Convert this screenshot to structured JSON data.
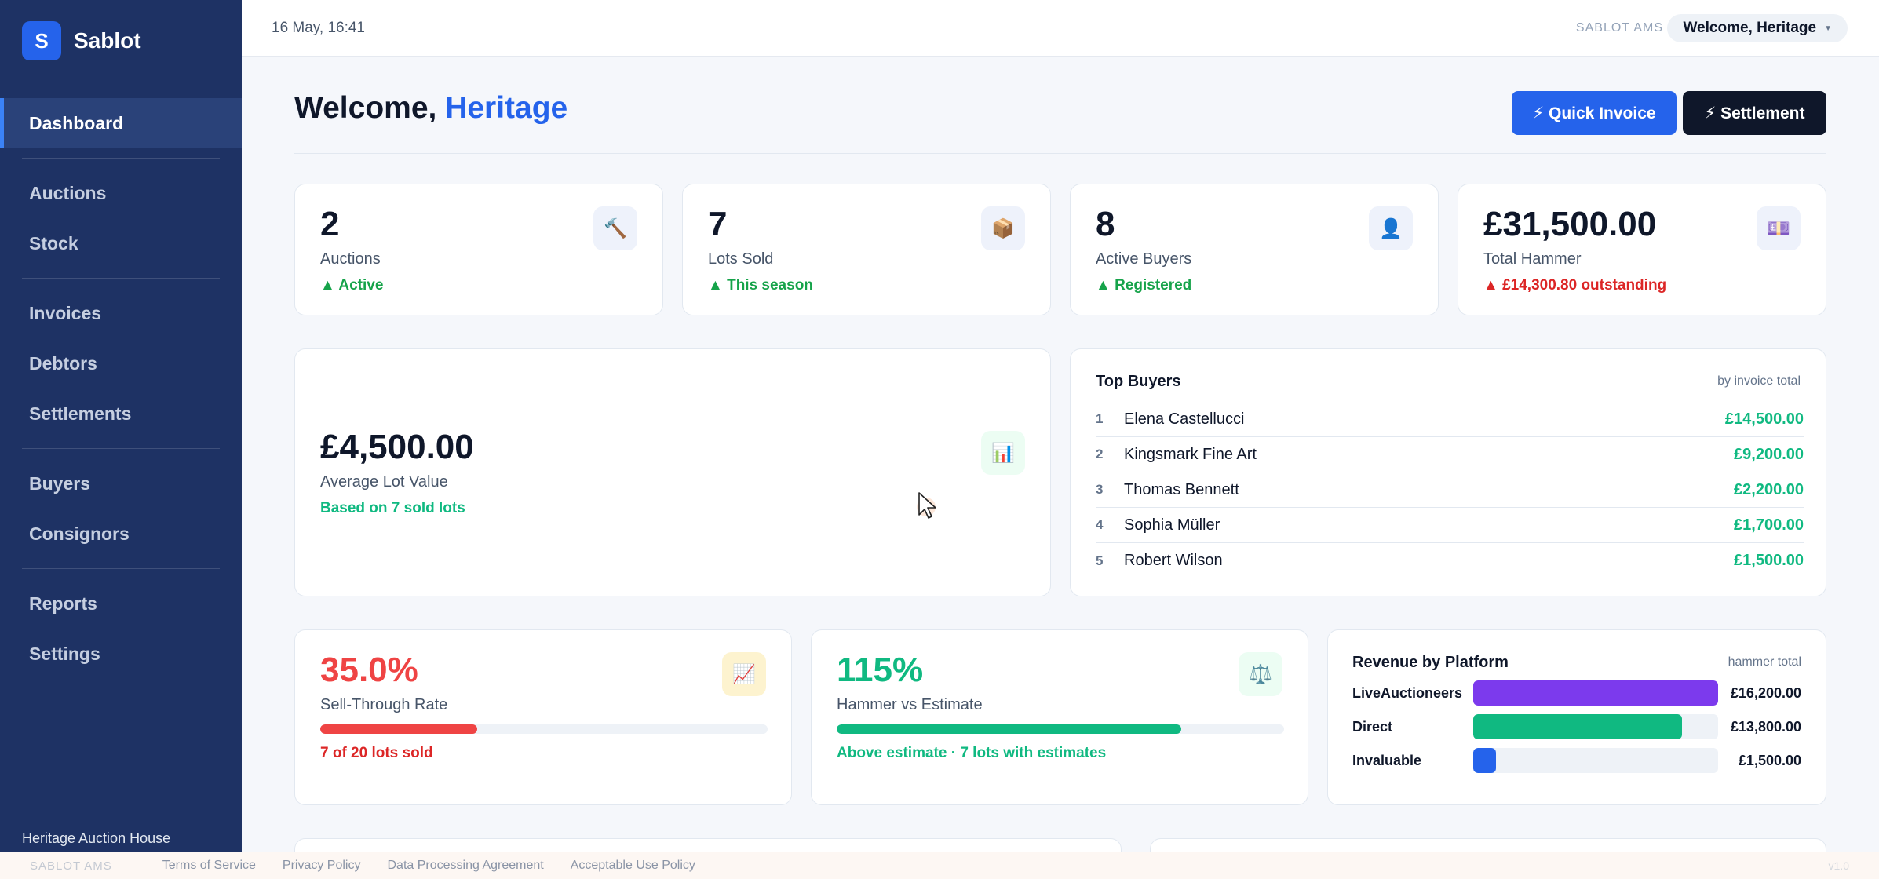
{
  "brand": {
    "logo_letter": "S",
    "name": "Sablot"
  },
  "sidebar": {
    "items": [
      {
        "label": "Dashboard",
        "active": true
      },
      {
        "label": "Auctions"
      },
      {
        "label": "Stock"
      },
      {
        "label": "Invoices"
      },
      {
        "label": "Debtors"
      },
      {
        "label": "Settlements"
      },
      {
        "label": "Buyers"
      },
      {
        "label": "Consignors"
      },
      {
        "label": "Reports"
      },
      {
        "label": "Settings"
      }
    ],
    "footer": "Heritage Auction House"
  },
  "topbar": {
    "datetime": "16 May, 16:41",
    "app_name": "SABLOT AMS",
    "user_menu": "Welcome, Heritage"
  },
  "page": {
    "title_prefix": "Welcome, ",
    "title_name": "Heritage",
    "quick_invoice": "⚡ Quick Invoice",
    "settlement": "⚡ Settlement"
  },
  "kpis": [
    {
      "value": "2",
      "label": "Auctions",
      "trend": "▲ Active",
      "icon": "gavel-icon",
      "glyph": "🔨",
      "trend_color": "#16a34a"
    },
    {
      "value": "7",
      "label": "Lots Sold",
      "trend": "▲ This season",
      "icon": "package-icon",
      "glyph": "📦",
      "trend_color": "#16a34a"
    },
    {
      "value": "8",
      "label": "Active Buyers",
      "trend": "▲ Registered",
      "icon": "user-icon",
      "glyph": "👤",
      "trend_color": "#16a34a"
    },
    {
      "value": "£31,500.00",
      "label": "Total Hammer",
      "trend": "▲ £14,300.80 outstanding",
      "icon": "cash-icon",
      "glyph": "💷",
      "trend_color": "#dc2626"
    }
  ],
  "avg_lot": {
    "value": "£4,500.00",
    "label": "Average Lot Value",
    "note": "Based on 7 sold lots",
    "icon": "bar-chart-icon",
    "glyph": "📊"
  },
  "top_buyers": {
    "title": "Top Buyers",
    "subtitle": "by invoice total",
    "rows": [
      {
        "rank": "1",
        "name": "Elena Castellucci",
        "total": "£14,500.00"
      },
      {
        "rank": "2",
        "name": "Kingsmark Fine Art",
        "total": "£9,200.00"
      },
      {
        "rank": "3",
        "name": "Thomas Bennett",
        "total": "£2,200.00"
      },
      {
        "rank": "4",
        "name": "Sophia Müller",
        "total": "£1,700.00"
      },
      {
        "rank": "5",
        "name": "Robert Wilson",
        "total": "£1,500.00"
      }
    ]
  },
  "sell_through": {
    "value": "35.0%",
    "label": "Sell-Through Rate",
    "note": "7 of 20 lots sold",
    "progress": 0.35,
    "color": "#ef4444",
    "icon": "trend-chart-icon",
    "glyph": "📈"
  },
  "hammer_estimate": {
    "value": "115%",
    "label": "Hammer vs Estimate",
    "note": "Above estimate · 7 lots with estimates",
    "progress": 0.77,
    "color": "#10b981",
    "icon": "scales-icon",
    "glyph": "⚖️"
  },
  "revenue_platform": {
    "title": "Revenue by Platform",
    "subtitle": "hammer total",
    "rows": [
      {
        "name": "LiveAuctioneers",
        "value": "£16,200.00",
        "amount": 16200,
        "color": "#7c3aed"
      },
      {
        "name": "Direct",
        "value": "£13,800.00",
        "amount": 13800,
        "color": "#10b981"
      },
      {
        "name": "Invaluable",
        "value": "£1,500.00",
        "amount": 1500,
        "color": "#2563eb"
      }
    ]
  },
  "footer": {
    "app": "SABLOT AMS",
    "links": [
      "Terms of Service",
      "Privacy Policy",
      "Data Processing Agreement",
      "Acceptable Use Policy"
    ],
    "version": "v1.0"
  }
}
